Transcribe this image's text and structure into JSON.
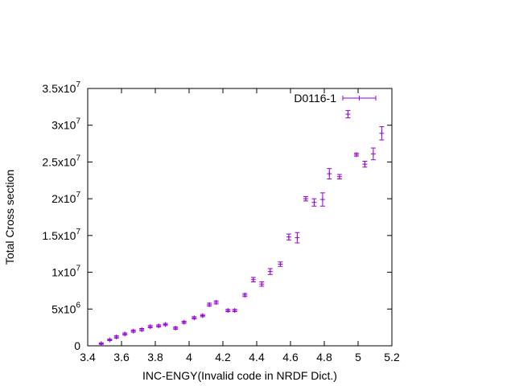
{
  "chart_data": {
    "type": "scatter",
    "title": "",
    "xlabel": "INC-ENGY(Invalid code in NRDF Dict.)",
    "ylabel": "Total Cross section",
    "xlim": [
      3.4,
      5.2
    ],
    "ylim": [
      0,
      35000000
    ],
    "grid": false,
    "legend_position": "top-right",
    "x_ticks": [
      {
        "value": 3.4,
        "label": "3.4"
      },
      {
        "value": 3.6,
        "label": "3.6"
      },
      {
        "value": 3.8,
        "label": "3.8"
      },
      {
        "value": 4.0,
        "label": "4"
      },
      {
        "value": 4.2,
        "label": "4.2"
      },
      {
        "value": 4.4,
        "label": "4.4"
      },
      {
        "value": 4.6,
        "label": "4.6"
      },
      {
        "value": 4.8,
        "label": "4.8"
      },
      {
        "value": 5.0,
        "label": "5"
      },
      {
        "value": 5.2,
        "label": "5.2"
      }
    ],
    "y_ticks": [
      {
        "value": 0,
        "mant": "0",
        "exp": ""
      },
      {
        "value": 5000000,
        "mant": "5x10",
        "exp": "6"
      },
      {
        "value": 10000000,
        "mant": "1x10",
        "exp": "7"
      },
      {
        "value": 15000000,
        "mant": "1.5x10",
        "exp": "7"
      },
      {
        "value": 20000000,
        "mant": "2x10",
        "exp": "7"
      },
      {
        "value": 25000000,
        "mant": "2.5x10",
        "exp": "7"
      },
      {
        "value": 30000000,
        "mant": "3x10",
        "exp": "7"
      },
      {
        "value": 35000000,
        "mant": "3.5x10",
        "exp": "7"
      }
    ],
    "series": [
      {
        "name": "D0116-1",
        "color": "#9400d3",
        "points": [
          {
            "x": 3.48,
            "y": 300000,
            "err": 100000
          },
          {
            "x": 3.53,
            "y": 800000,
            "err": 100000
          },
          {
            "x": 3.57,
            "y": 1200000,
            "err": 150000
          },
          {
            "x": 3.62,
            "y": 1600000,
            "err": 150000
          },
          {
            "x": 3.67,
            "y": 2000000,
            "err": 150000
          },
          {
            "x": 3.72,
            "y": 2200000,
            "err": 150000
          },
          {
            "x": 3.77,
            "y": 2600000,
            "err": 150000
          },
          {
            "x": 3.82,
            "y": 2700000,
            "err": 150000
          },
          {
            "x": 3.86,
            "y": 2900000,
            "err": 150000
          },
          {
            "x": 3.92,
            "y": 2400000,
            "err": 150000
          },
          {
            "x": 3.97,
            "y": 3200000,
            "err": 150000
          },
          {
            "x": 4.03,
            "y": 3800000,
            "err": 150000
          },
          {
            "x": 4.08,
            "y": 4100000,
            "err": 150000
          },
          {
            "x": 4.12,
            "y": 5600000,
            "err": 200000
          },
          {
            "x": 4.16,
            "y": 5900000,
            "err": 200000
          },
          {
            "x": 4.23,
            "y": 4800000,
            "err": 150000
          },
          {
            "x": 4.27,
            "y": 4800000,
            "err": 150000
          },
          {
            "x": 4.33,
            "y": 6900000,
            "err": 200000
          },
          {
            "x": 4.38,
            "y": 9000000,
            "err": 300000
          },
          {
            "x": 4.43,
            "y": 8400000,
            "err": 300000
          },
          {
            "x": 4.48,
            "y": 10100000,
            "err": 400000
          },
          {
            "x": 4.54,
            "y": 11100000,
            "err": 300000
          },
          {
            "x": 4.59,
            "y": 14800000,
            "err": 400000
          },
          {
            "x": 4.64,
            "y": 14700000,
            "err": 700000
          },
          {
            "x": 4.69,
            "y": 20000000,
            "err": 300000
          },
          {
            "x": 4.74,
            "y": 19500000,
            "err": 500000
          },
          {
            "x": 4.79,
            "y": 19900000,
            "err": 900000
          },
          {
            "x": 4.83,
            "y": 23400000,
            "err": 700000
          },
          {
            "x": 4.89,
            "y": 23000000,
            "err": 300000
          },
          {
            "x": 4.94,
            "y": 31500000,
            "err": 500000
          },
          {
            "x": 4.99,
            "y": 26000000,
            "err": 200000
          },
          {
            "x": 5.04,
            "y": 24700000,
            "err": 400000
          },
          {
            "x": 5.09,
            "y": 26100000,
            "err": 800000
          },
          {
            "x": 5.14,
            "y": 28900000,
            "err": 900000
          }
        ]
      }
    ]
  }
}
